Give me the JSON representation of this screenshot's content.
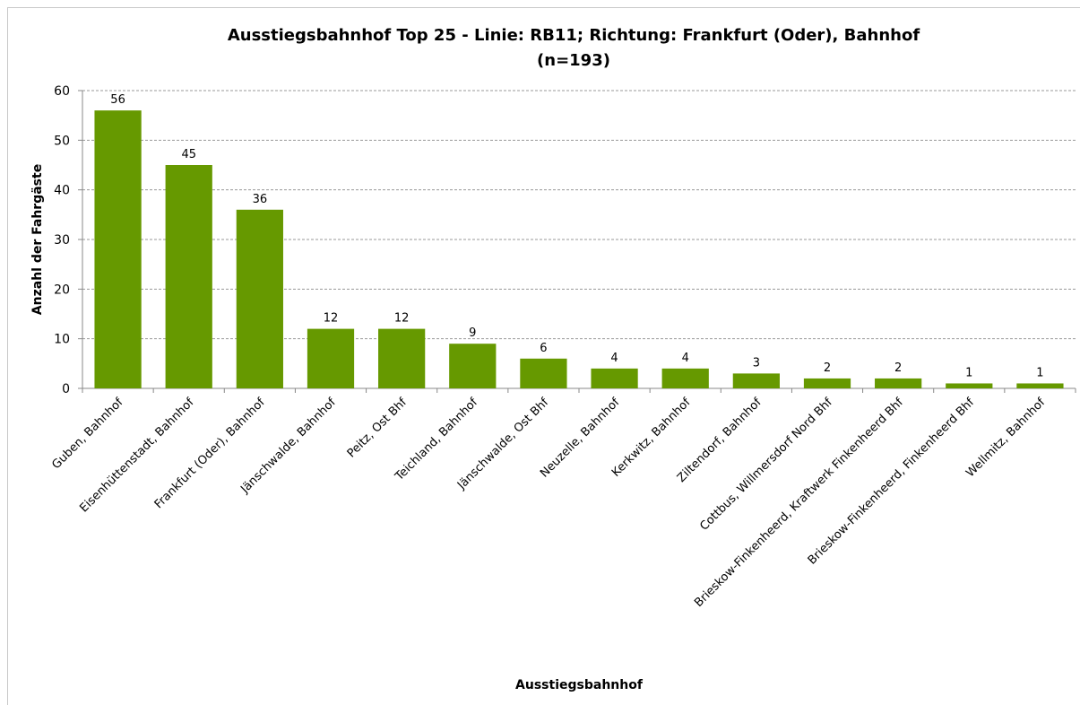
{
  "chart_data": {
    "type": "bar",
    "title": [
      "Ausstiegsbahnhof Top 25 - Linie: RB11; Richtung: Frankfurt (Oder), Bahnhof",
      "(n=193)"
    ],
    "x_label": "Ausstiegsbahnhof",
    "y_label": "Anzahl der Fahrgäste",
    "categories": [
      "Guben, Bahnhof",
      "Eisenhüttenstadt, Bahnhof",
      "Frankfurt (Oder), Bahnhof",
      "Jänschwalde, Bahnhof",
      "Peitz, Ost Bhf",
      "Teichland, Bahnhof",
      "Jänschwalde, Ost Bhf",
      "Neuzelle, Bahnhof",
      "Kerkwitz, Bahnhof",
      "Ziltendorf, Bahnhof",
      "Cottbus, Willmersdorf Nord Bhf",
      "Brieskow-Finkenheerd, Kraftwerk Finkenheerd Bhf",
      "Brieskow-Finkenheerd, Finkenheerd Bhf",
      "Wellmitz, Bahnhof"
    ],
    "values": [
      56,
      45,
      36,
      12,
      12,
      9,
      6,
      4,
      4,
      3,
      2,
      2,
      1,
      1
    ],
    "color": "#669900",
    "ylim": [
      0,
      60
    ],
    "yticks": [
      0,
      10,
      20,
      30,
      40,
      50,
      60
    ],
    "grid": true
  }
}
